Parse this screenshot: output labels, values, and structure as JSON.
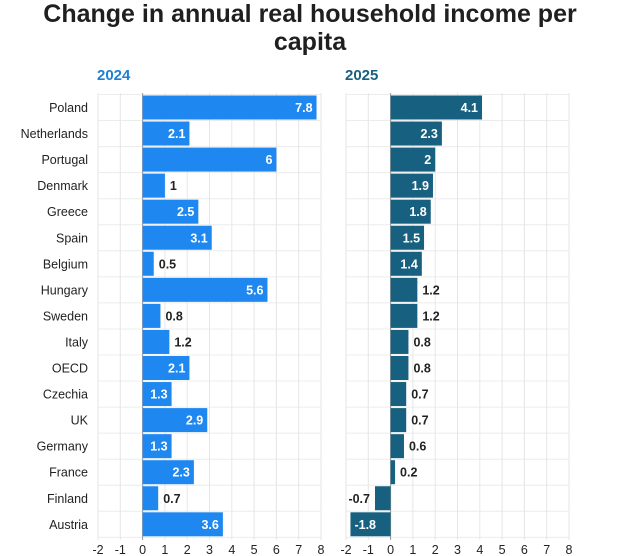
{
  "title_line1": "Change in annual real household income per",
  "title_line2": "capita",
  "colors": {
    "panel_2024": "#1e88f0",
    "panel_2025": "#17607f",
    "title_2024": "#1e7fd6",
    "title_2025": "#17607f"
  },
  "chart_data": {
    "type": "bar",
    "orientation": "horizontal",
    "title": "Change in annual real household income per capita",
    "categories": [
      "Poland",
      "Netherlands",
      "Portugal",
      "Denmark",
      "Greece",
      "Spain",
      "Belgium",
      "Hungary",
      "Sweden",
      "Italy",
      "OECD",
      "Czechia",
      "UK",
      "Germany",
      "France",
      "Finland",
      "Austria"
    ],
    "panels": [
      {
        "title": "2024",
        "color": "#1e88f0",
        "xlim": [
          -2,
          8
        ],
        "xticks": [
          -2,
          -1,
          0,
          1,
          2,
          3,
          4,
          5,
          6,
          7,
          8
        ],
        "values": [
          7.8,
          2.1,
          6,
          1,
          2.5,
          3.1,
          0.5,
          5.6,
          0.8,
          1.2,
          2.1,
          1.3,
          2.9,
          1.3,
          2.3,
          0.7,
          3.6
        ]
      },
      {
        "title": "2025",
        "color": "#17607f",
        "xlim": [
          -2,
          8
        ],
        "xticks": [
          -2,
          -1,
          0,
          1,
          2,
          3,
          4,
          5,
          6,
          7,
          8
        ],
        "values": [
          4.1,
          2.3,
          2,
          1.9,
          1.8,
          1.5,
          1.4,
          1.2,
          1.2,
          0.8,
          0.8,
          0.7,
          0.7,
          0.6,
          0.2,
          -0.7,
          -1.8
        ]
      }
    ],
    "grid": true
  }
}
